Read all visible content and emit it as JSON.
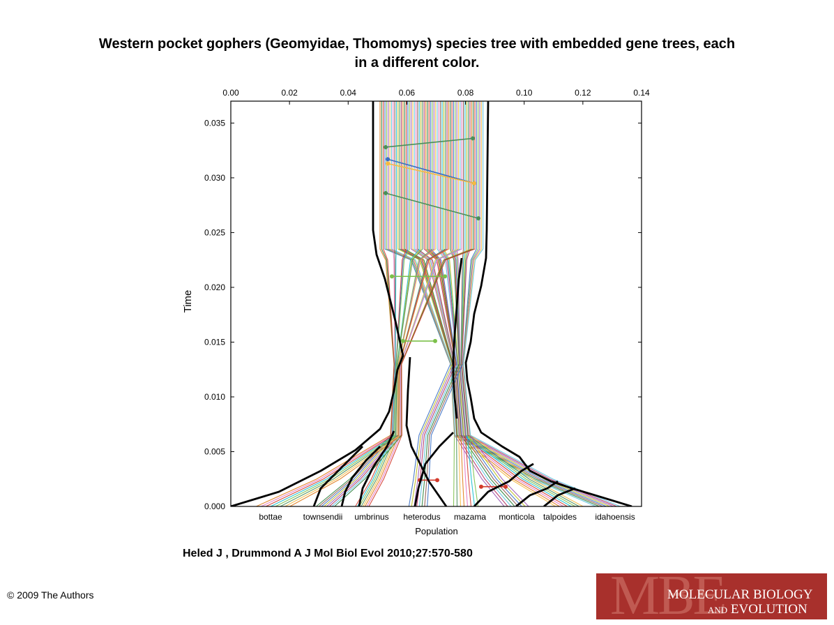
{
  "header": {
    "title_line1": "Western pocket gophers (Geomyidae, Thomomys) species tree with embedded gene trees, each",
    "title_line2": "in a different color."
  },
  "citation": "Heled J , Drummond A J Mol Biol Evol 2010;27:570-580",
  "copyright": "© 2009 The Authors",
  "logo": {
    "letters": "MBE",
    "line1": "MOLECULAR BIOLOGY",
    "line2_and": "AND",
    "line2_rest": " EVOLUTION",
    "color": "#a8302c"
  },
  "chart_data": {
    "type": "line",
    "xlabel": "Population",
    "ylabel": "Time",
    "xlim": [
      0,
      0.14
    ],
    "ylim": [
      0,
      0.037
    ],
    "x_ticks": [
      "0.00",
      "0.02",
      "0.04",
      "0.06",
      "0.08",
      "0.10",
      "0.12",
      "0.14"
    ],
    "y_ticks": [
      "0.000",
      "0.005",
      "0.010",
      "0.015",
      "0.020",
      "0.025",
      "0.030",
      "0.035"
    ],
    "categories": [
      "bottae",
      "townsendii",
      "umbrinus",
      "heterodus",
      "mazama",
      "monticola",
      "talpoides",
      "idahoensis"
    ],
    "colors": [
      "#e07b1a",
      "#2a7f3a",
      "#d33a2c",
      "#3a6fc4",
      "#7cc04a",
      "#9b59b6",
      "#f4b942",
      "#5bc0de",
      "#e377c2",
      "#8c564b",
      "#17becf",
      "#bcbd22",
      "#4a8f5a",
      "#b03060"
    ]
  }
}
